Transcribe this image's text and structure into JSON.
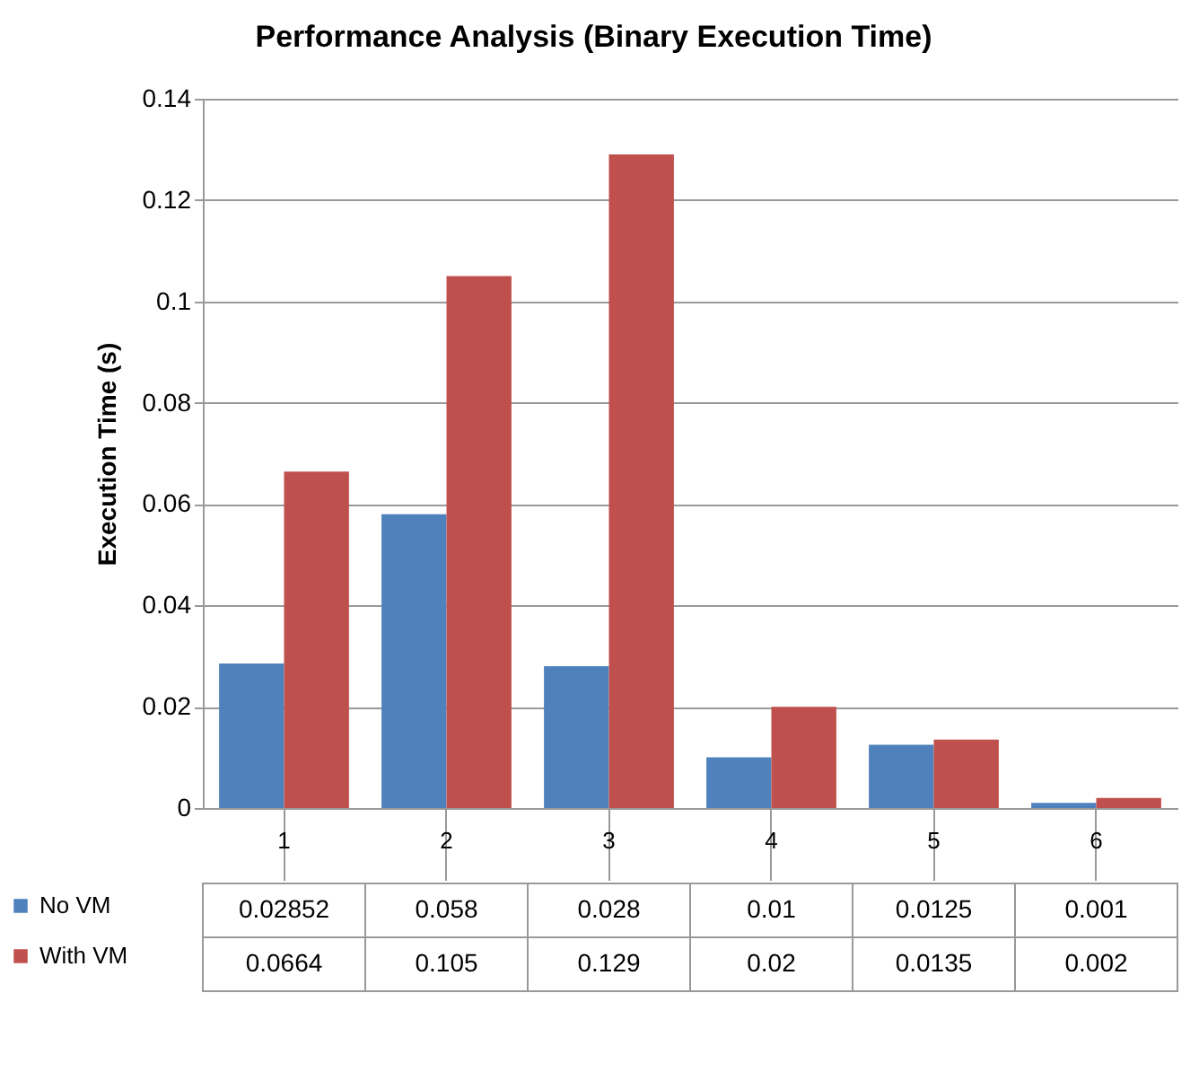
{
  "chart_data": {
    "type": "bar",
    "title": "Performance Analysis (Binary Execution Time)",
    "ylabel": "Execution Time (s)",
    "categories": [
      "1",
      "2",
      "3",
      "4",
      "5",
      "6"
    ],
    "series": [
      {
        "name": "No VM",
        "color": "#4f81bd",
        "values": [
          0.02852,
          0.058,
          0.028,
          0.01,
          0.0125,
          0.001
        ],
        "value_labels": [
          "0.02852",
          "0.058",
          "0.028",
          "0.01",
          "0.0125",
          "0.001"
        ]
      },
      {
        "name": "With VM",
        "color": "#c0504d",
        "values": [
          0.0664,
          0.105,
          0.129,
          0.02,
          0.0135,
          0.002
        ],
        "value_labels": [
          "0.0664",
          "0.105",
          "0.129",
          "0.02",
          "0.0135",
          "0.002"
        ]
      }
    ],
    "ylim": [
      0,
      0.14
    ],
    "yticks": [
      0,
      0.02,
      0.04,
      0.06,
      0.08,
      0.1,
      0.12,
      0.14
    ],
    "grid": "y",
    "legend": "bottom left"
  }
}
